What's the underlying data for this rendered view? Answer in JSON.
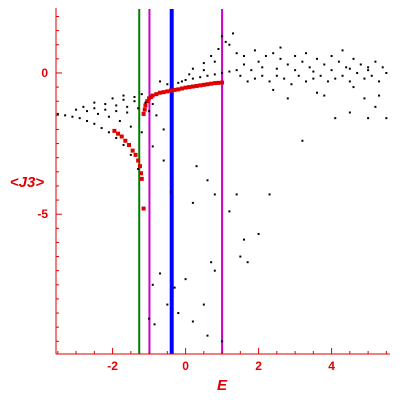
{
  "chart_data": {
    "type": "scatter",
    "xlabel": "E",
    "ylabel": "<J3>",
    "xlim": [
      -3.55,
      5.6
    ],
    "ylim": [
      -9.95,
      2.3
    ],
    "x_ticks": [
      -2,
      0,
      2,
      4
    ],
    "y_ticks": [
      0,
      -5
    ],
    "grid": false,
    "axis_color": "#e00000",
    "series": [
      {
        "color": "#e00000",
        "marker": "square",
        "points": [
          [
            -1.15,
            -4.8
          ],
          [
            -1.2,
            -3.75
          ],
          [
            -1.22,
            -3.55
          ],
          [
            -1.25,
            -3.3
          ],
          [
            -1.3,
            -3.1
          ],
          [
            -1.37,
            -2.9
          ],
          [
            -1.45,
            -2.75
          ],
          [
            -1.55,
            -2.55
          ],
          [
            -1.65,
            -2.4
          ],
          [
            -1.75,
            -2.25
          ],
          [
            -1.85,
            -2.15
          ],
          [
            -1.95,
            -2.05
          ],
          [
            -1.15,
            -1.45
          ],
          [
            -1.12,
            -1.3
          ],
          [
            -1.1,
            -1.15
          ],
          [
            -1.05,
            -1.0
          ],
          [
            -1.0,
            -0.9
          ],
          [
            -0.95,
            -0.85
          ],
          [
            -0.9,
            -0.8
          ],
          [
            -0.8,
            -0.75
          ],
          [
            -0.7,
            -0.7
          ],
          [
            -0.6,
            -0.68
          ],
          [
            -0.5,
            -0.65
          ],
          [
            -0.4,
            -0.62
          ],
          [
            -0.3,
            -0.6
          ],
          [
            -0.2,
            -0.58
          ],
          [
            -0.1,
            -0.55
          ],
          [
            0.0,
            -0.52
          ],
          [
            0.1,
            -0.5
          ],
          [
            0.2,
            -0.48
          ],
          [
            0.3,
            -0.46
          ],
          [
            0.4,
            -0.44
          ],
          [
            0.5,
            -0.42
          ],
          [
            0.6,
            -0.4
          ],
          [
            0.7,
            -0.38
          ],
          [
            0.8,
            -0.36
          ],
          [
            0.9,
            -0.35
          ],
          [
            1.0,
            -0.34
          ]
        ]
      },
      {
        "color": "#000000",
        "marker": "dot",
        "points": [
          [
            -3.5,
            -1.45
          ],
          [
            -3.3,
            -1.5
          ],
          [
            -3.1,
            -1.55
          ],
          [
            -2.9,
            -1.6
          ],
          [
            -2.7,
            -1.7
          ],
          [
            -2.5,
            -1.8
          ],
          [
            -2.3,
            -1.95
          ],
          [
            -2.1,
            -2.1
          ],
          [
            -1.9,
            -2.3
          ],
          [
            -1.7,
            -2.55
          ],
          [
            -1.5,
            -2.9
          ],
          [
            -1.3,
            -3.4
          ],
          [
            -3.0,
            -1.3
          ],
          [
            -2.7,
            -1.35
          ],
          [
            -2.4,
            -1.45
          ],
          [
            -2.1,
            -1.55
          ],
          [
            -1.8,
            -1.7
          ],
          [
            -1.5,
            -1.9
          ],
          [
            -1.2,
            -2.1
          ],
          [
            -2.8,
            -1.2
          ],
          [
            -2.5,
            -1.25
          ],
          [
            -2.2,
            -1.3
          ],
          [
            -1.9,
            -1.35
          ],
          [
            -1.6,
            -1.4
          ],
          [
            -2.5,
            -1.05
          ],
          [
            -2.2,
            -1.1
          ],
          [
            -1.9,
            -1.15
          ],
          [
            -1.6,
            -1.2
          ],
          [
            -1.3,
            -1.25
          ],
          [
            -1.0,
            -1.35
          ],
          [
            -0.8,
            -1.5
          ],
          [
            -0.6,
            -2.0
          ],
          [
            -2.0,
            -0.9
          ],
          [
            -1.7,
            -0.95
          ],
          [
            -1.4,
            -1.0
          ],
          [
            -1.1,
            -1.05
          ],
          [
            -0.9,
            -1.1
          ],
          [
            -1.7,
            -0.8
          ],
          [
            -1.4,
            -0.85
          ],
          [
            -1.2,
            -0.75
          ],
          [
            -0.9,
            -2.6
          ],
          [
            -0.6,
            -3.1
          ],
          [
            -0.4,
            -4.2
          ],
          [
            0.3,
            -3.3
          ],
          [
            0.6,
            -3.8
          ],
          [
            0.8,
            -4.3
          ],
          [
            0.2,
            -4.6
          ],
          [
            1.2,
            -4.9
          ],
          [
            1.4,
            -4.3
          ],
          [
            1.6,
            -5.9
          ],
          [
            1.7,
            -6.7
          ],
          [
            -0.3,
            -7.6
          ],
          [
            0.0,
            -7.3
          ],
          [
            -0.7,
            -7.1
          ],
          [
            -0.9,
            -7.5
          ],
          [
            -0.5,
            -8.2
          ],
          [
            -0.2,
            -8.5
          ],
          [
            0.2,
            -8.8
          ],
          [
            0.6,
            -9.3
          ],
          [
            0.5,
            -8.2
          ],
          [
            0.8,
            -7.0
          ],
          [
            1.0,
            -9.5
          ],
          [
            -0.85,
            -8.9
          ],
          [
            -1.0,
            -8.7
          ],
          [
            0.7,
            -6.7
          ],
          [
            1.5,
            -6.5
          ],
          [
            2.0,
            -5.7
          ],
          [
            2.3,
            -4.3
          ],
          [
            3.2,
            -2.4
          ],
          [
            4.1,
            -1.6
          ],
          [
            4.5,
            -1.4
          ],
          [
            4.9,
            -0.9
          ],
          [
            5.2,
            -1.2
          ],
          [
            5.5,
            -1.6
          ],
          [
            5.0,
            -1.6
          ],
          [
            3.8,
            -0.8
          ],
          [
            2.8,
            -0.9
          ],
          [
            -0.2,
            -0.35
          ],
          [
            -0.1,
            -0.3
          ],
          [
            0.0,
            -0.25
          ],
          [
            0.2,
            -0.2
          ],
          [
            0.4,
            -0.15
          ],
          [
            0.6,
            -0.1
          ],
          [
            0.8,
            -0.05
          ],
          [
            1.0,
            0.0
          ],
          [
            1.2,
            0.05
          ],
          [
            1.4,
            0.1
          ],
          [
            0.5,
            0.35
          ],
          [
            0.7,
            0.6
          ],
          [
            0.9,
            0.85
          ],
          [
            1.1,
            1.1
          ],
          [
            1.3,
            1.4
          ],
          [
            1.0,
            1.3
          ],
          [
            1.2,
            1.0
          ],
          [
            1.4,
            0.7
          ],
          [
            0.8,
            0.4
          ],
          [
            1.6,
            0.3
          ],
          [
            1.8,
            0.1
          ],
          [
            2.0,
            0.4
          ],
          [
            2.2,
            0.6
          ],
          [
            2.4,
            0.7
          ],
          [
            2.6,
            0.5
          ],
          [
            2.8,
            0.3
          ],
          [
            3.0,
            0.6
          ],
          [
            3.2,
            0.4
          ],
          [
            3.4,
            0.2
          ],
          [
            3.6,
            0.5
          ],
          [
            3.8,
            0.3
          ],
          [
            4.0,
            0.6
          ],
          [
            4.2,
            0.4
          ],
          [
            4.4,
            0.2
          ],
          [
            4.6,
            0.5
          ],
          [
            4.8,
            0.3
          ],
          [
            5.0,
            0.1
          ],
          [
            5.2,
            0.4
          ],
          [
            5.4,
            0.2
          ],
          [
            5.5,
            0.0
          ],
          [
            1.5,
            -0.1
          ],
          [
            1.7,
            -0.3
          ],
          [
            1.9,
            -0.2
          ],
          [
            2.1,
            -0.1
          ],
          [
            2.3,
            -0.3
          ],
          [
            2.5,
            -0.1
          ],
          [
            2.7,
            -0.2
          ],
          [
            2.9,
            -0.4
          ],
          [
            3.1,
            -0.1
          ],
          [
            3.3,
            -0.3
          ],
          [
            3.5,
            -0.2
          ],
          [
            3.7,
            -0.1
          ],
          [
            3.9,
            -0.3
          ],
          [
            4.1,
            -0.2
          ],
          [
            4.3,
            -0.1
          ],
          [
            4.5,
            -0.3
          ],
          [
            4.7,
            0.0
          ],
          [
            4.9,
            -0.2
          ],
          [
            5.1,
            -0.1
          ],
          [
            5.3,
            -0.3
          ],
          [
            2.5,
            0.15
          ],
          [
            3.0,
            0.1
          ],
          [
            3.5,
            0.05
          ],
          [
            4.0,
            0.1
          ],
          [
            4.5,
            0.15
          ],
          [
            5.0,
            0.2
          ],
          [
            1.6,
            0.6
          ],
          [
            1.9,
            0.8
          ],
          [
            2.1,
            0.2
          ],
          [
            2.6,
            0.9
          ],
          [
            3.3,
            0.7
          ],
          [
            4.3,
            0.8
          ],
          [
            2.4,
            -0.6
          ],
          [
            3.6,
            -0.7
          ],
          [
            4.6,
            -0.5
          ],
          [
            5.3,
            -0.8
          ],
          [
            0.2,
            0.15
          ],
          [
            0.5,
            0.1
          ],
          [
            0.1,
            -0.05
          ],
          [
            -0.5,
            -0.4
          ],
          [
            -0.7,
            -0.3
          ]
        ]
      }
    ],
    "reference_lines": [
      {
        "x": -1.27,
        "color": "#008000",
        "width": 2
      },
      {
        "x": -0.99,
        "color": "#cc00cc",
        "width": 2
      },
      {
        "x": -0.38,
        "color": "#0000ff",
        "width": 4
      },
      {
        "x": 1.0,
        "color": "#cc00cc",
        "width": 2
      }
    ]
  }
}
